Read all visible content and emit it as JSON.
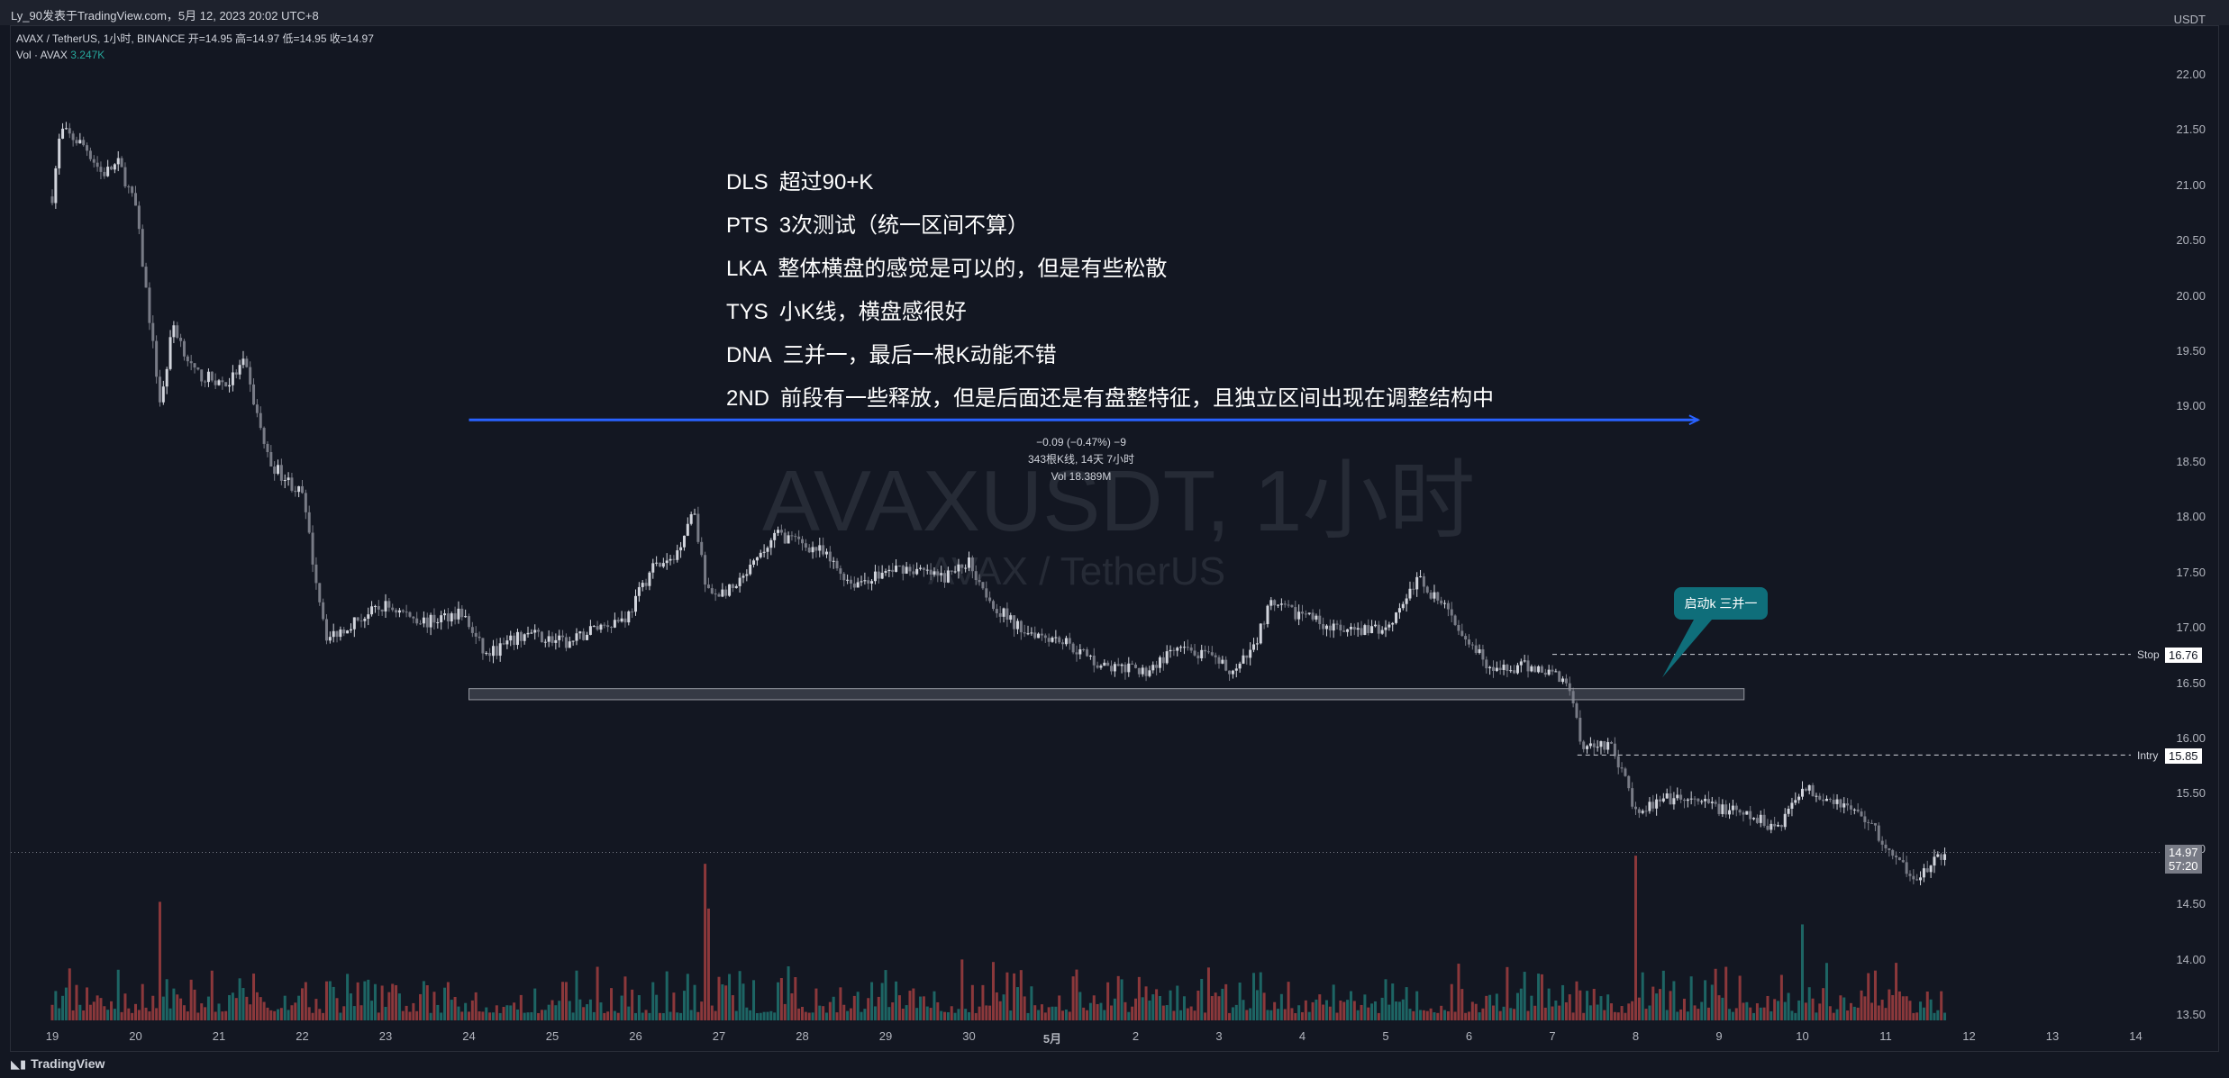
{
  "header": {
    "title": "Ly_90发表于TradingView.com，5月 12, 2023 20:02 UTC+8",
    "symbol_line": "AVAX / TetherUS, 1小时, BINANCE",
    "ohlc": "开=14.95  高=14.97  低=14.95  收=14.97",
    "vol_label": "Vol · AVAX",
    "vol_value": "3.247K",
    "currency": "USDT"
  },
  "notes": [
    {
      "tag": "DLS",
      "text": "超过90+K"
    },
    {
      "tag": "PTS",
      "text": "3次测试（统一区间不算）"
    },
    {
      "tag": "LKA",
      "text": "整体横盘的感觉是可以的，但是有些松散"
    },
    {
      "tag": "TYS",
      "text": "小K线，横盘感很好"
    },
    {
      "tag": "DNA",
      "text": "三并一，最后一根K动能不错"
    },
    {
      "tag": "2ND",
      "text": "前段有一些释放，但是后面还是有盘整特征，且独立区间出现在调整结构中"
    }
  ],
  "measure": {
    "line1": "−0.09 (−0.47%) −9",
    "line2": "343根K线, 14天 7小时",
    "line3": "Vol 18.389M"
  },
  "watermark": {
    "main": "AVAXUSDT, 1小时",
    "sub": "AVAX / TetherUS"
  },
  "callout": {
    "label": "启动k 三并一"
  },
  "levels": {
    "stop_label": "Stop",
    "stop_value": "16.76",
    "entry_label": "Intry",
    "entry_value": "15.85",
    "last_price": "14.97",
    "countdown": "57:20"
  },
  "branding": {
    "logo": "TradingView"
  },
  "colors": {
    "up": "#d1d4dc",
    "down": "#787b86",
    "vol_up": "#26a69a",
    "vol_down": "#ef5350",
    "box": "#787b86",
    "arrow": "#2962ff",
    "callout": "#0f6e7a",
    "bg": "#131722"
  },
  "chart_data": {
    "type": "candlestick",
    "symbol": "AVAX / TetherUS",
    "interval": "1小时",
    "y_ticks": [
      "22.00",
      "21.50",
      "21.00",
      "20.50",
      "20.00",
      "19.50",
      "19.00",
      "18.50",
      "18.00",
      "17.50",
      "17.00",
      "16.50",
      "16.00",
      "15.50",
      "15.00",
      "14.50",
      "14.00",
      "13.50"
    ],
    "ylim": [
      13.4,
      22.3
    ],
    "x_ticks": [
      "19",
      "20",
      "21",
      "22",
      "23",
      "24",
      "25",
      "26",
      "27",
      "28",
      "29",
      "30",
      "5月",
      "2",
      "3",
      "4",
      "5",
      "6",
      "7",
      "8",
      "9",
      "10",
      "11",
      "12",
      "13",
      "14"
    ],
    "price_path": [
      [
        0,
        20.9
      ],
      [
        0.1,
        21.5
      ],
      [
        0.4,
        21.35
      ],
      [
        0.6,
        21.1
      ],
      [
        0.8,
        21.2
      ],
      [
        1.0,
        20.8
      ],
      [
        1.3,
        19.0
      ],
      [
        1.45,
        19.75
      ],
      [
        1.7,
        19.3
      ],
      [
        2.1,
        19.2
      ],
      [
        2.3,
        19.4
      ],
      [
        2.6,
        18.5
      ],
      [
        3.0,
        18.2
      ],
      [
        3.15,
        17.5
      ],
      [
        3.3,
        16.9
      ],
      [
        3.6,
        17.05
      ],
      [
        4.0,
        17.2
      ],
      [
        4.5,
        17.05
      ],
      [
        4.9,
        17.15
      ],
      [
        5.2,
        16.75
      ],
      [
        5.7,
        16.95
      ],
      [
        6.2,
        16.85
      ],
      [
        6.5,
        17.0
      ],
      [
        6.9,
        17.1
      ],
      [
        7.2,
        17.55
      ],
      [
        7.45,
        17.6
      ],
      [
        7.7,
        18.1
      ],
      [
        7.85,
        17.3
      ],
      [
        8.2,
        17.35
      ],
      [
        8.7,
        17.85
      ],
      [
        9.2,
        17.7
      ],
      [
        9.6,
        17.4
      ],
      [
        10.2,
        17.55
      ],
      [
        10.7,
        17.45
      ],
      [
        11.0,
        17.6
      ],
      [
        11.3,
        17.2
      ],
      [
        11.6,
        17.0
      ],
      [
        12.1,
        16.9
      ],
      [
        12.6,
        16.65
      ],
      [
        13.1,
        16.6
      ],
      [
        13.5,
        16.8
      ],
      [
        13.8,
        16.75
      ],
      [
        14.2,
        16.6
      ],
      [
        14.4,
        16.8
      ],
      [
        14.6,
        17.2
      ],
      [
        15.1,
        17.1
      ],
      [
        15.5,
        16.95
      ],
      [
        16.0,
        17.0
      ],
      [
        16.4,
        17.45
      ],
      [
        16.9,
        17.0
      ],
      [
        17.3,
        16.6
      ],
      [
        17.7,
        16.65
      ],
      [
        18.0,
        16.6
      ],
      [
        18.2,
        16.5
      ],
      [
        18.35,
        15.95
      ],
      [
        18.7,
        15.95
      ],
      [
        19.0,
        15.35
      ],
      [
        19.4,
        15.45
      ],
      [
        19.9,
        15.4
      ],
      [
        20.3,
        15.3
      ],
      [
        20.7,
        15.2
      ],
      [
        21.0,
        15.55
      ],
      [
        21.4,
        15.45
      ],
      [
        21.8,
        15.25
      ],
      [
        22.1,
        14.9
      ],
      [
        22.4,
        14.75
      ],
      [
        22.7,
        14.95
      ]
    ],
    "annotations": {
      "range_box": {
        "x_start": 5.0,
        "x_end": 20.3,
        "y_top": 16.45,
        "y_bottom": 16.35
      },
      "measure_arrow": {
        "x_start": 5.0,
        "x_end": 19.75,
        "y": 18.88
      },
      "stop_line": 16.76,
      "entry_line": 15.85,
      "last_price": 14.97
    }
  }
}
